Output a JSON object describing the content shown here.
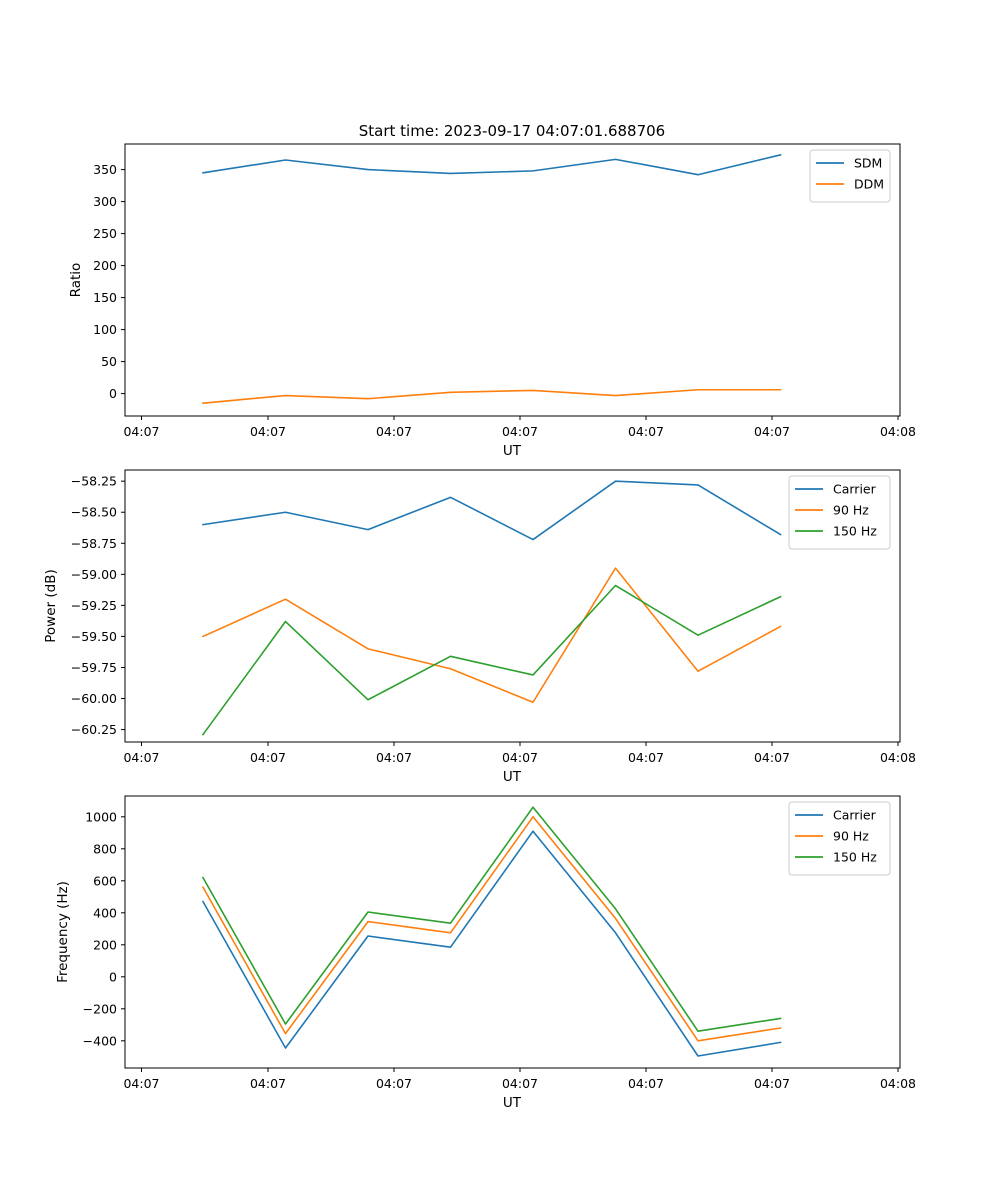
{
  "title": "Start time: 2023-09-17 04:07:01.688706",
  "chart_data": [
    {
      "type": "line",
      "xlabel": "UT",
      "ylabel": "Ratio",
      "x_tick_labels": [
        "04:07",
        "04:07",
        "04:07",
        "04:07",
        "04:07",
        "04:07",
        "04:07",
        "04:08"
      ],
      "y_ticks": [
        0,
        50,
        100,
        150,
        200,
        250,
        300,
        350
      ],
      "y_tick_labels": [
        "0",
        "50",
        "100",
        "150",
        "200",
        "250",
        "300",
        "350"
      ],
      "ylim": [
        -35,
        390
      ],
      "legend": "top-right",
      "series": [
        {
          "name": "SDM",
          "color": "#1f77b4",
          "values": [
            345,
            365,
            350,
            344,
            348,
            366,
            342,
            373
          ]
        },
        {
          "name": "DDM",
          "color": "#ff7f0e",
          "values": [
            -15,
            -3,
            -8,
            2,
            5,
            -3,
            6,
            6
          ]
        }
      ]
    },
    {
      "type": "line",
      "xlabel": "UT",
      "ylabel": "Power (dB)",
      "x_tick_labels": [
        "04:07",
        "04:07",
        "04:07",
        "04:07",
        "04:07",
        "04:07",
        "04:07",
        "04:08"
      ],
      "y_ticks": [
        -60.25,
        -60.0,
        -59.75,
        -59.5,
        -59.25,
        -59.0,
        -58.75,
        -58.5,
        -58.25
      ],
      "y_tick_labels": [
        "−60.25",
        "−60.00",
        "−59.75",
        "−59.50",
        "−59.25",
        "−59.00",
        "−58.75",
        "−58.50",
        "−58.25"
      ],
      "ylim": [
        -60.35,
        -58.16
      ],
      "legend": "top-right",
      "series": [
        {
          "name": "Carrier",
          "color": "#1f77b4",
          "values": [
            -58.6,
            -58.5,
            -58.64,
            -58.38,
            -58.72,
            -58.25,
            -58.28,
            -58.68
          ]
        },
        {
          "name": "90 Hz",
          "color": "#ff7f0e",
          "values": [
            -59.5,
            -59.2,
            -59.6,
            -59.76,
            -60.03,
            -58.95,
            -59.78,
            -59.42
          ]
        },
        {
          "name": "150 Hz",
          "color": "#2ca02c",
          "values": [
            -60.29,
            -59.38,
            -60.01,
            -59.66,
            -59.81,
            -59.09,
            -59.49,
            -59.18
          ]
        }
      ]
    },
    {
      "type": "line",
      "xlabel": "UT",
      "ylabel": "Frequency (Hz)",
      "x_tick_labels": [
        "04:07",
        "04:07",
        "04:07",
        "04:07",
        "04:07",
        "04:07",
        "04:07",
        "04:08"
      ],
      "y_ticks": [
        -400,
        -200,
        0,
        200,
        400,
        600,
        800,
        1000
      ],
      "y_tick_labels": [
        "−400",
        "−200",
        "0",
        "200",
        "400",
        "600",
        "800",
        "1000"
      ],
      "ylim": [
        -570,
        1130
      ],
      "legend": "top-right",
      "series": [
        {
          "name": "Carrier",
          "color": "#1f77b4",
          "values": [
            470,
            -445,
            255,
            185,
            910,
            275,
            -495,
            -410
          ]
        },
        {
          "name": "90 Hz",
          "color": "#ff7f0e",
          "values": [
            560,
            -355,
            345,
            275,
            1000,
            365,
            -400,
            -320
          ]
        },
        {
          "name": "150 Hz",
          "color": "#2ca02c",
          "values": [
            620,
            -295,
            405,
            335,
            1060,
            425,
            -340,
            -260
          ]
        }
      ]
    }
  ]
}
